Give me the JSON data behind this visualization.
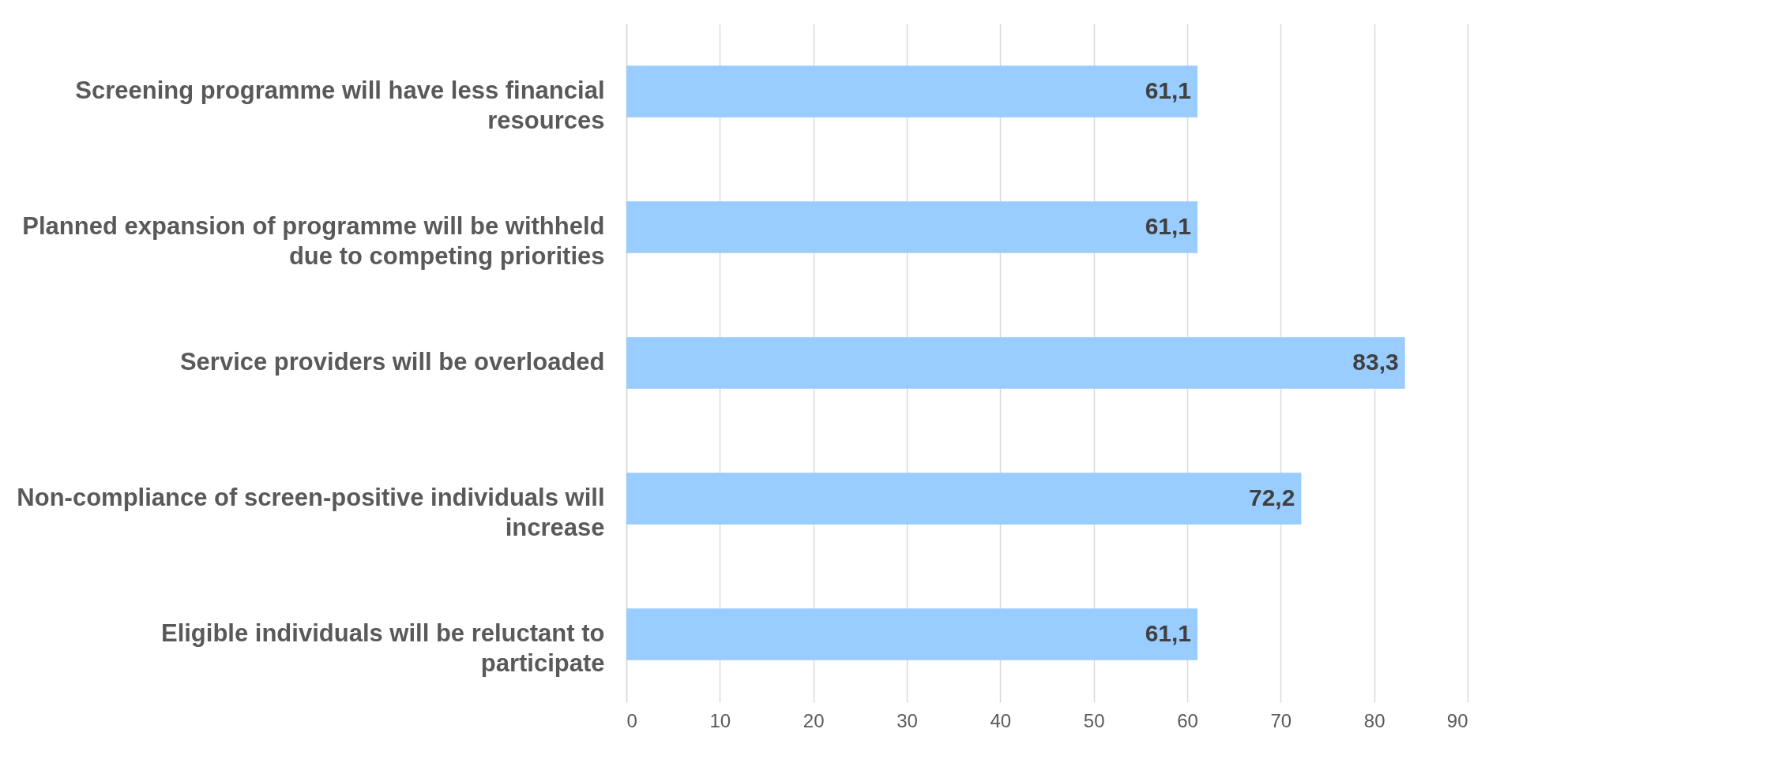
{
  "chart_data": {
    "type": "bar",
    "orientation": "horizontal",
    "categories": [
      "Screening programme will have less financial resources",
      "Planned expansion of programme will be withheld due to competing priorities",
      "Service providers will be overloaded",
      "Non-compliance of screen-positive individuals will increase",
      "Eligible individuals  will be reluctant to participate"
    ],
    "values": [
      61.1,
      61.1,
      83.3,
      72.2,
      61.1
    ],
    "value_labels": [
      "61,1",
      "61,1",
      "83,3",
      "72,2",
      "61,1"
    ],
    "color": "#99ccff",
    "xlim": [
      0,
      90
    ],
    "xticks": [
      0,
      10,
      20,
      30,
      40,
      50,
      60,
      70,
      80,
      90
    ],
    "grid": "x"
  }
}
